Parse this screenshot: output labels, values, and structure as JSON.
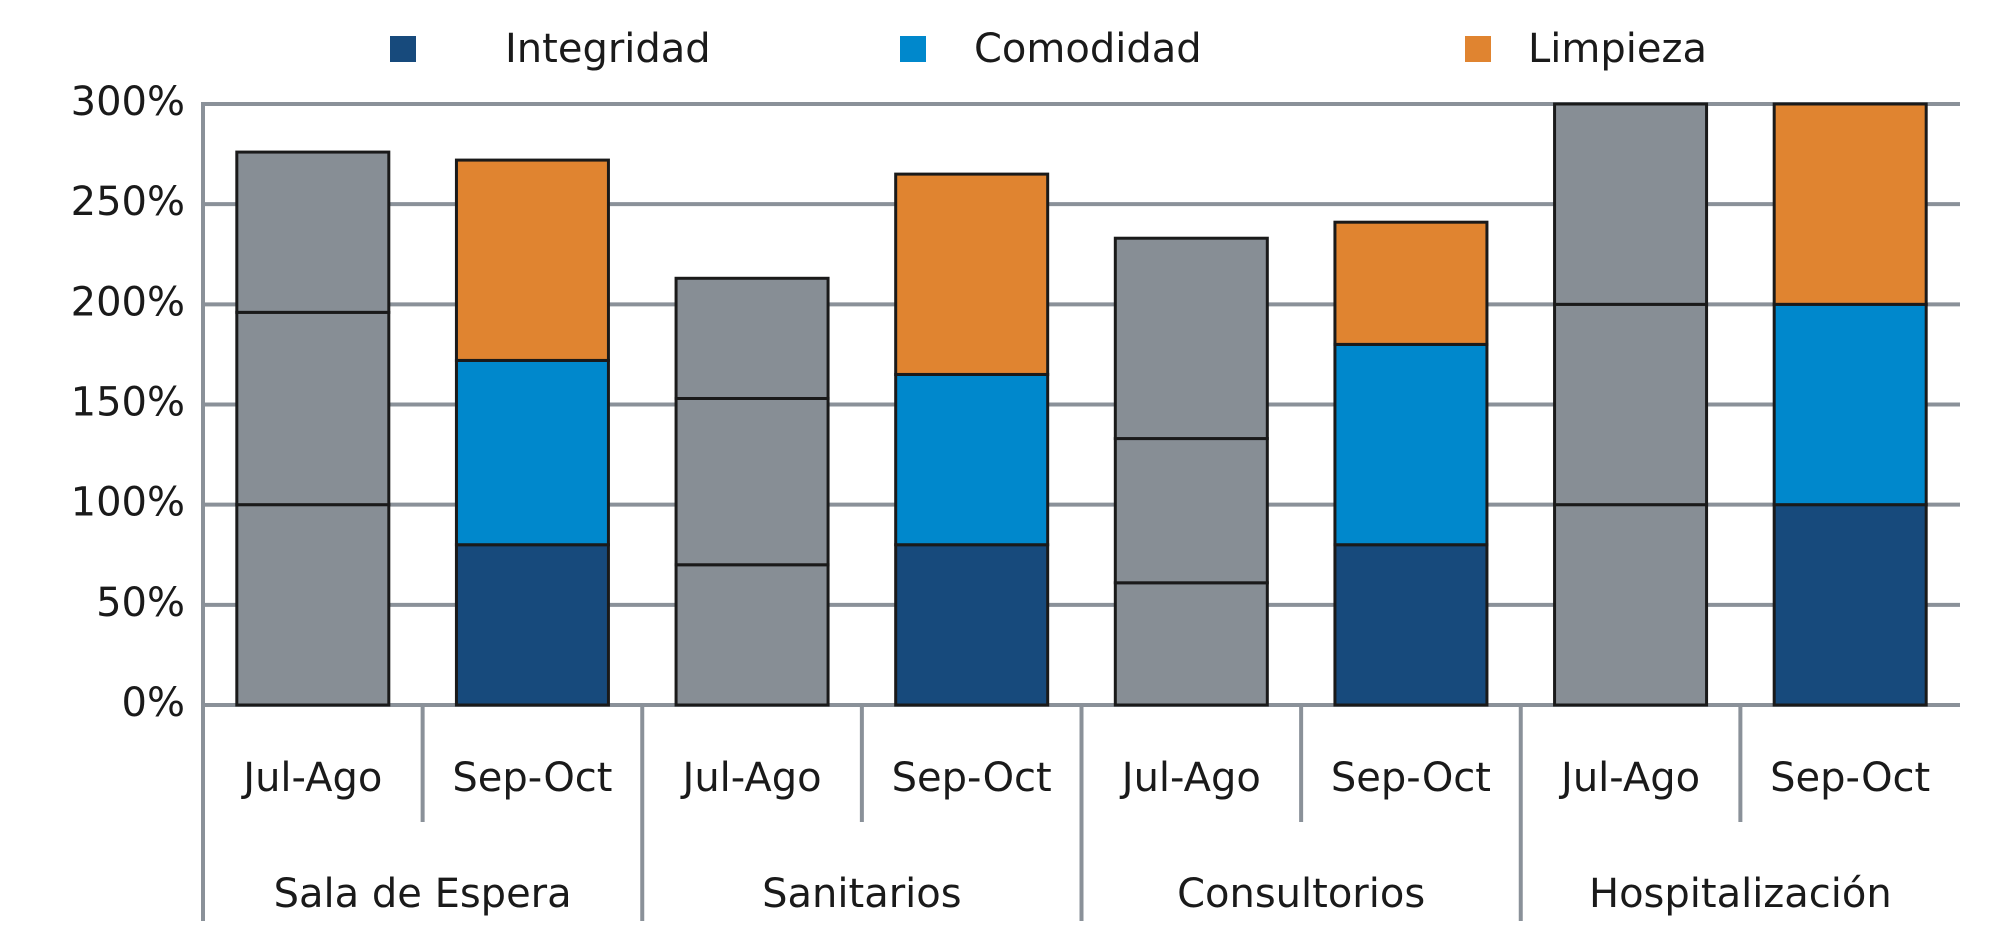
{
  "chart_data": {
    "type": "stacked_bar",
    "groups": [
      {
        "name": "Sala de Espera",
        "categories": [
          "Jul-Ago",
          "Sep-Oct"
        ]
      },
      {
        "name": "Sanitarios",
        "categories": [
          "Jul-Ago",
          "Sep-Oct"
        ]
      },
      {
        "name": "Consultorios",
        "categories": [
          "Jul-Ago",
          "Sep-Oct"
        ]
      },
      {
        "name": "Hospitalización",
        "categories": [
          "Jul-Ago",
          "Sep-Oct"
        ]
      }
    ],
    "series": [
      {
        "name": "Integridad",
        "color": "#174a7c",
        "point_colors": [
          "#878e95",
          "#174a7c",
          "#878e95",
          "#174a7c",
          "#878e95",
          "#174a7c",
          "#878e95",
          "#174a7c"
        ],
        "values": [
          100,
          80,
          70,
          80,
          61,
          80,
          100,
          100
        ]
      },
      {
        "name": "Comodidad",
        "color": "#0088cc",
        "point_colors": [
          "#878e95",
          "#0088cc",
          "#878e95",
          "#0088cc",
          "#878e95",
          "#0088cc",
          "#878e95",
          "#0088cc"
        ],
        "values": [
          96,
          92,
          83,
          85,
          72,
          100,
          100,
          100
        ]
      },
      {
        "name": "Limpieza",
        "color": "#e08430",
        "point_colors": [
          "#878e95",
          "#e08430",
          "#878e95",
          "#e08430",
          "#878e95",
          "#e08430",
          "#878e95",
          "#e08430"
        ],
        "values": [
          80,
          100,
          60,
          100,
          100,
          61,
          100,
          100
        ]
      }
    ],
    "ylim": [
      0,
      300
    ],
    "yticks": [
      {
        "value": 0,
        "label": "0%"
      },
      {
        "value": 50,
        "label": "50%"
      },
      {
        "value": 100,
        "label": "100%"
      },
      {
        "value": 150,
        "label": "150%"
      },
      {
        "value": 200,
        "label": "200%"
      },
      {
        "value": 250,
        "label": "250%"
      },
      {
        "value": 300,
        "label": "300%"
      }
    ],
    "grid": true,
    "legend": "top"
  }
}
